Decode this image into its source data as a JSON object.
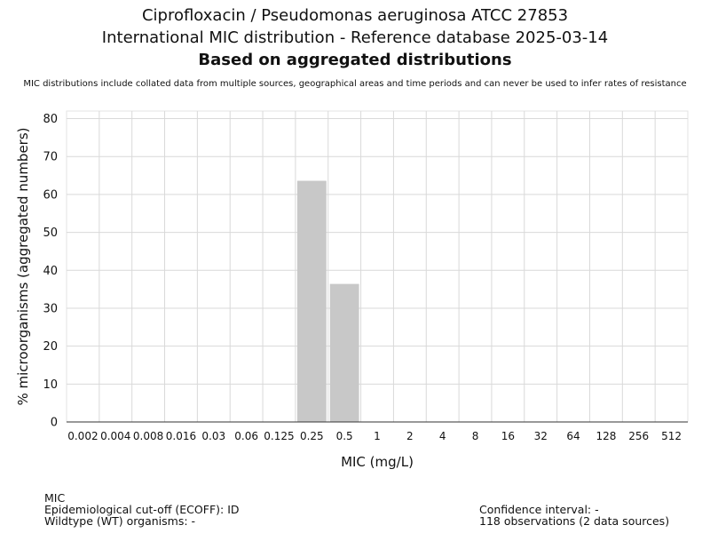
{
  "header": {
    "title_line1": "Ciprofloxacin / Pseudomonas aeruginosa ATCC 27853",
    "title_line2": "International MIC distribution - Reference database 2025-03-14",
    "title_line3": "Based on aggregated distributions",
    "note": "MIC distributions include collated data from multiple sources, geographical areas and time periods and can never be used to infer rates of resistance"
  },
  "chart_data": {
    "type": "bar",
    "categories": [
      "0.002",
      "0.004",
      "0.008",
      "0.016",
      "0.03",
      "0.06",
      "0.125",
      "0.25",
      "0.5",
      "1",
      "2",
      "4",
      "8",
      "16",
      "32",
      "64",
      "128",
      "256",
      "512"
    ],
    "values": [
      0,
      0,
      0,
      0,
      0,
      0,
      0,
      63.6,
      36.4,
      0,
      0,
      0,
      0,
      0,
      0,
      0,
      0,
      0,
      0
    ],
    "xlabel": "MIC (mg/L)",
    "ylabel": "% microorganisms (aggregated numbers)",
    "ylim": [
      0,
      82
    ],
    "yticks": [
      0,
      10,
      20,
      30,
      40,
      50,
      60,
      70,
      80
    ],
    "grid": true,
    "bar_color": "#c8c8c8",
    "grid_color": "#d9d9d9"
  },
  "footer": {
    "left": {
      "line1": "MIC",
      "line2": "Epidemiological cut-off (ECOFF): ID",
      "line3": "Wildtype (WT) organisms:  -"
    },
    "right": {
      "line1": "Confidence interval: -",
      "line2": "118 observations (2 data sources)"
    }
  }
}
